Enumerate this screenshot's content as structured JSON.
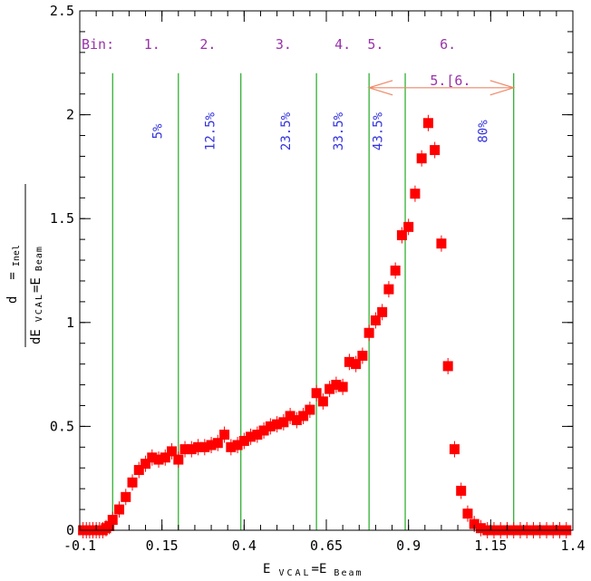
{
  "chart_data": {
    "type": "scatter",
    "xlabel": "E_VCAL=E_Beam",
    "ylabel": "d = Inel / dE_VCAL=E_Beam",
    "xlim": [
      -0.1,
      1.4
    ],
    "ylim": [
      0,
      2.5
    ],
    "xticks": [
      "-0.1",
      "0.15",
      "0.4",
      "0.65",
      "0.9",
      "1.15",
      "1.4"
    ],
    "yticks": [
      "0",
      "0.5",
      "1",
      "1.5",
      "2",
      "2.5"
    ],
    "bin_header": "Bin:",
    "bins": [
      {
        "label": "1.",
        "x": 0.12
      },
      {
        "label": "2.",
        "x": 0.29
      },
      {
        "label": "3.",
        "x": 0.52
      },
      {
        "label": "4.",
        "x": 0.7
      },
      {
        "label": "5.",
        "x": 0.8
      },
      {
        "label": "6.",
        "x": 1.02
      }
    ],
    "bin_edges": [
      0.0,
      0.2,
      0.39,
      0.62,
      0.78,
      0.89,
      1.22
    ],
    "percentages": [
      {
        "label": "5%",
        "x": 0.15
      },
      {
        "label": "12.5%",
        "x": 0.31
      },
      {
        "label": "23.5%",
        "x": 0.54
      },
      {
        "label": "33.5%",
        "x": 0.7
      },
      {
        "label": "43.5%",
        "x": 0.82
      },
      {
        "label": "80%",
        "x": 1.14
      }
    ],
    "arrow": {
      "label": "5.[6.",
      "x_start": 0.78,
      "x_end": 1.22,
      "y": 2.13
    },
    "points_x": [
      -0.09,
      -0.08,
      -0.07,
      -0.06,
      -0.05,
      -0.04,
      -0.03,
      -0.02,
      -0.01,
      0.0,
      0.02,
      0.04,
      0.06,
      0.08,
      0.1,
      0.12,
      0.14,
      0.16,
      0.18,
      0.2,
      0.22,
      0.24,
      0.26,
      0.28,
      0.3,
      0.32,
      0.34,
      0.36,
      0.38,
      0.4,
      0.42,
      0.44,
      0.46,
      0.48,
      0.5,
      0.52,
      0.54,
      0.56,
      0.58,
      0.6,
      0.62,
      0.64,
      0.66,
      0.68,
      0.7,
      0.72,
      0.74,
      0.76,
      0.78,
      0.8,
      0.82,
      0.84,
      0.86,
      0.88,
      0.9,
      0.92,
      0.94,
      0.96,
      0.98,
      1.0,
      1.02,
      1.04,
      1.06,
      1.08,
      1.1,
      1.12,
      1.14,
      1.16,
      1.18,
      1.2,
      1.22,
      1.24,
      1.26,
      1.28,
      1.3,
      1.32,
      1.34,
      1.36,
      1.38
    ],
    "points_y": [
      0.0,
      0.0,
      0.0,
      0.0,
      0.0,
      0.0,
      0.0,
      0.01,
      0.02,
      0.05,
      0.1,
      0.16,
      0.23,
      0.29,
      0.32,
      0.35,
      0.34,
      0.35,
      0.38,
      0.34,
      0.39,
      0.39,
      0.4,
      0.4,
      0.41,
      0.42,
      0.46,
      0.4,
      0.41,
      0.43,
      0.45,
      0.46,
      0.48,
      0.5,
      0.51,
      0.52,
      0.55,
      0.53,
      0.55,
      0.58,
      0.66,
      0.62,
      0.68,
      0.7,
      0.69,
      0.81,
      0.8,
      0.84,
      0.95,
      1.01,
      1.05,
      1.16,
      1.25,
      1.42,
      1.46,
      1.62,
      1.79,
      1.96,
      1.83,
      1.38,
      0.79,
      0.39,
      0.19,
      0.08,
      0.03,
      0.01,
      0.0,
      0.0,
      0.0,
      0.0,
      0.0,
      0.0,
      0.0,
      0.0,
      0.0,
      0.0,
      0.0,
      0.0,
      0.0
    ],
    "marker_color": "#ff0000",
    "bin_line_color": "#22aa22",
    "arrow_color": "#ee8866"
  }
}
